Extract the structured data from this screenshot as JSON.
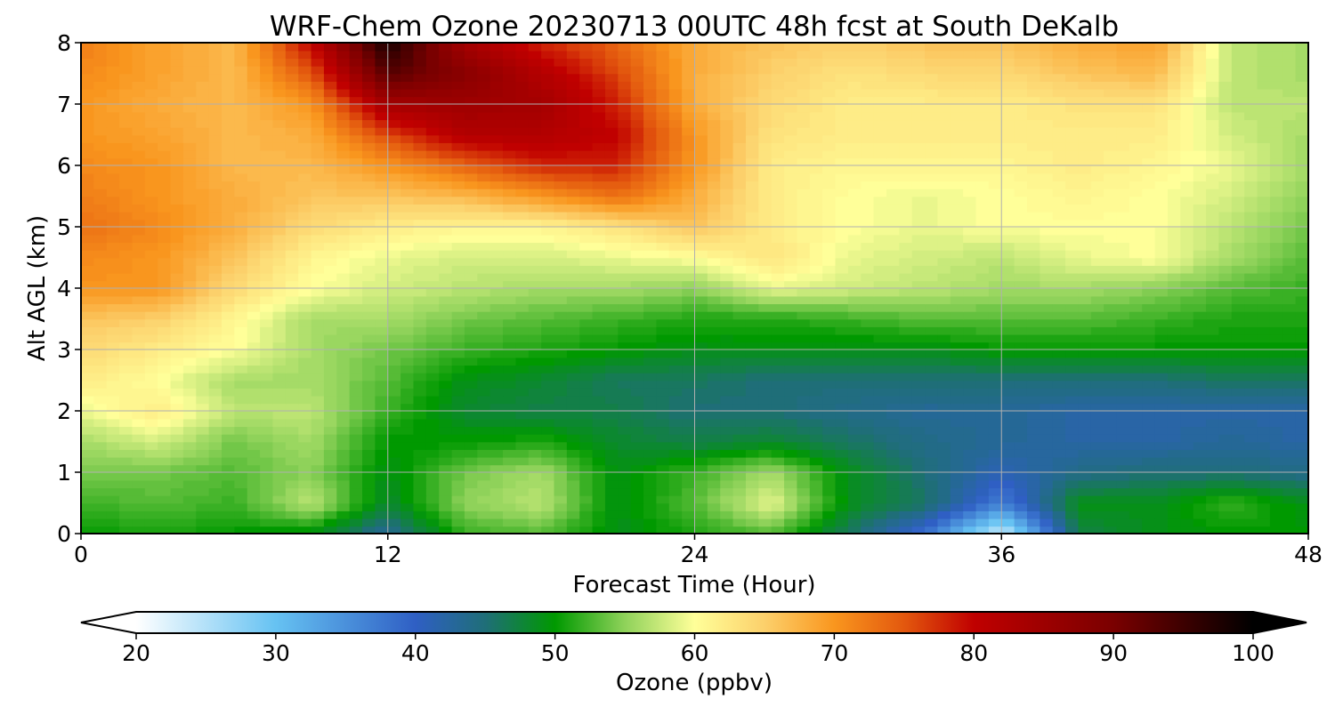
{
  "chart_data": {
    "type": "heatmap",
    "title": "WRF-Chem Ozone  20230713 00UTC 48h fcst at South DeKalb",
    "xlabel": "Forecast Time (Hour)",
    "ylabel": "Alt AGL (km)",
    "xlim": [
      0,
      48
    ],
    "ylim": [
      0,
      8
    ],
    "xticks": [
      "0",
      "12",
      "24",
      "36",
      "48"
    ],
    "yticks": [
      "0",
      "1",
      "2",
      "3",
      "4",
      "5",
      "6",
      "7",
      "8"
    ],
    "grid": true,
    "x": [
      0,
      3,
      6,
      9,
      12,
      15,
      18,
      21,
      24,
      27,
      30,
      33,
      36,
      39,
      42,
      45,
      48
    ],
    "y": [
      0,
      0.5,
      1,
      1.5,
      2,
      2.5,
      3,
      3.5,
      4,
      4.5,
      5,
      5.5,
      6,
      6.5,
      7,
      7.5,
      8
    ],
    "z": [
      [
        50,
        51,
        50,
        49,
        43,
        52,
        53,
        49,
        51,
        53,
        46,
        38,
        23,
        47,
        49,
        50,
        50
      ],
      [
        52,
        53,
        52,
        57,
        48,
        55,
        57,
        49,
        53,
        59,
        49,
        46,
        37,
        49,
        49,
        52,
        49
      ],
      [
        54,
        54,
        53,
        55,
        49,
        54,
        56,
        49,
        52,
        56,
        49,
        45,
        41,
        44,
        45,
        45,
        44
      ],
      [
        56,
        58,
        54,
        56,
        50,
        50,
        51,
        48,
        47,
        48,
        46,
        44,
        43,
        42,
        42,
        43,
        42
      ],
      [
        59,
        62,
        57,
        57,
        52,
        48,
        47,
        47,
        45,
        45,
        44,
        43,
        43,
        42,
        42,
        42,
        42
      ],
      [
        62,
        60,
        56,
        56,
        53,
        49,
        48,
        46,
        46,
        45,
        45,
        45,
        45,
        45,
        45,
        46,
        46
      ],
      [
        64,
        62,
        60,
        56,
        54,
        52,
        51,
        50,
        49,
        49,
        49,
        49,
        50,
        50,
        50,
        50,
        50
      ],
      [
        66,
        65,
        61,
        56,
        56,
        54,
        53,
        52,
        51,
        51,
        52,
        53,
        53,
        53,
        52,
        51,
        51
      ],
      [
        70,
        70,
        64,
        60,
        58,
        57,
        56,
        56,
        55,
        59,
        58,
        57,
        56,
        56,
        55,
        53,
        52
      ],
      [
        71,
        70,
        66,
        61,
        59,
        58,
        58,
        59,
        60,
        63,
        59,
        58,
        57,
        59,
        60,
        56,
        53
      ],
      [
        73,
        71,
        68,
        64,
        62,
        61,
        61,
        63,
        66,
        62,
        60,
        59,
        60,
        60,
        60,
        57,
        54
      ],
      [
        72,
        70,
        68,
        66,
        66,
        67,
        70,
        73,
        68,
        62,
        60,
        59,
        60,
        61,
        60,
        58,
        55
      ],
      [
        71,
        70,
        67,
        67,
        70,
        74,
        78,
        78,
        70,
        62,
        61,
        61,
        61,
        62,
        61,
        59,
        56
      ],
      [
        70,
        69,
        67,
        68,
        76,
        82,
        82,
        80,
        70,
        63,
        62,
        62,
        62,
        62,
        62,
        58,
        56
      ],
      [
        70,
        68,
        67,
        70,
        84,
        85,
        84,
        78,
        68,
        64,
        62,
        62,
        62,
        63,
        63,
        57,
        57
      ],
      [
        71,
        69,
        67,
        75,
        93,
        88,
        82,
        76,
        68,
        65,
        63,
        64,
        64,
        66,
        67,
        57,
        56
      ],
      [
        72,
        69,
        67,
        80,
        98,
        84,
        78,
        74,
        68,
        66,
        65,
        66,
        66,
        68,
        69,
        57,
        56
      ]
    ],
    "colorbar": {
      "label": "Ozone  (ppbv)",
      "min": 20,
      "max": 100,
      "ticks": [
        "20",
        "30",
        "40",
        "50",
        "60",
        "70",
        "80",
        "90",
        "100"
      ],
      "extend": "both",
      "stops": [
        {
          "value": 20,
          "color": "#ffffff"
        },
        {
          "value": 30,
          "color": "#66c2f2"
        },
        {
          "value": 40,
          "color": "#2f5fc4"
        },
        {
          "value": 45,
          "color": "#1f6e78"
        },
        {
          "value": 50,
          "color": "#009900"
        },
        {
          "value": 55,
          "color": "#8fd25a"
        },
        {
          "value": 60,
          "color": "#ffff99"
        },
        {
          "value": 65,
          "color": "#fcd06b"
        },
        {
          "value": 70,
          "color": "#f9961e"
        },
        {
          "value": 75,
          "color": "#e3580e"
        },
        {
          "value": 80,
          "color": "#c00000"
        },
        {
          "value": 90,
          "color": "#7a0000"
        },
        {
          "value": 100,
          "color": "#000000"
        }
      ]
    }
  }
}
